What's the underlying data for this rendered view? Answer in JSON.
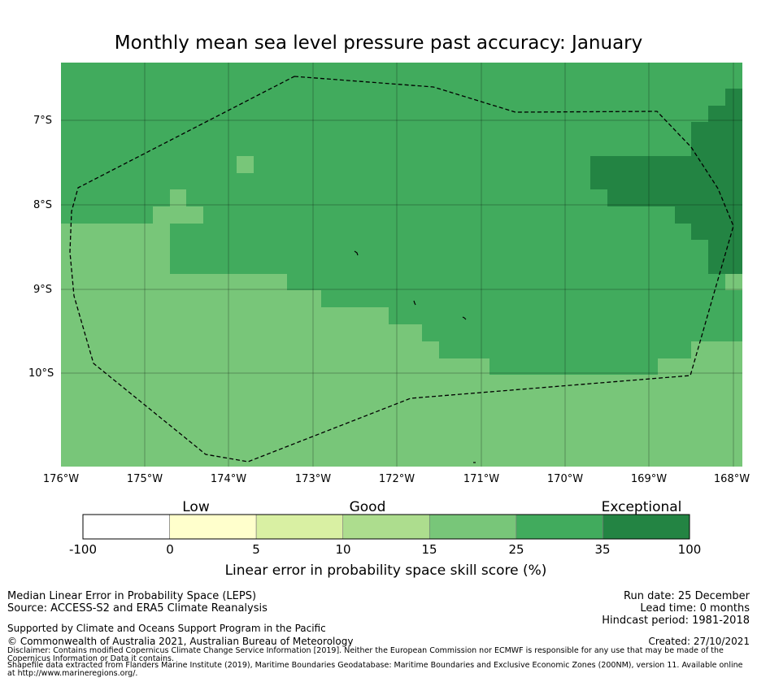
{
  "title": "Monthly mean sea level pressure past accuracy: January",
  "map": {
    "lat_labels": [
      "7°S",
      "8°S",
      "9°S",
      "10°S"
    ],
    "lon_labels": [
      "176°W",
      "175°W",
      "174°W",
      "173°W",
      "172°W",
      "171°W",
      "170°W",
      "169°W",
      "168°W"
    ]
  },
  "colorbar": {
    "categories": [
      "Low",
      "Good",
      "Exceptional"
    ],
    "ticks": [
      "-100",
      "0",
      "5",
      "10",
      "15",
      "25",
      "35",
      "100"
    ],
    "colors": [
      "#ffffff",
      "#ffffcc",
      "#d9f0a3",
      "#addd8e",
      "#78c679",
      "#41ab5d",
      "#238443"
    ],
    "label": "Linear error in probability space skill score (%)"
  },
  "footer": {
    "left_line1": "Median Linear Error in Probability Space (LEPS)",
    "left_line2": "Source: ACCESS-S2 and ERA5 Climate Reanalysis",
    "supported": "Supported by Climate and Oceans Support Program in the Pacific",
    "copyright": "© Commonwealth of Australia 2021, Australian Bureau of Meteorology",
    "run_date": "Run date: 25 December",
    "lead_time": "Lead time: 0 months",
    "hindcast": "Hindcast period: 1981-2018",
    "created": "Created: 27/10/2021",
    "disclaimer": "Disclaimer: Contains modified Copernicus Climate Change Service Information [2019]. Neither the European Commission nor ECMWF is responsible for any use that may be made of the Copernicus Information or Data it contains.",
    "shapefile": "Shapefile data extracted from Flanders Marine Institute (2019), Maritime Boundaries Geodatabase: Maritime Boundaries and Exclusive Economic Zones (200NM), version 11. Available online at http://www.marineregions.org/."
  }
}
